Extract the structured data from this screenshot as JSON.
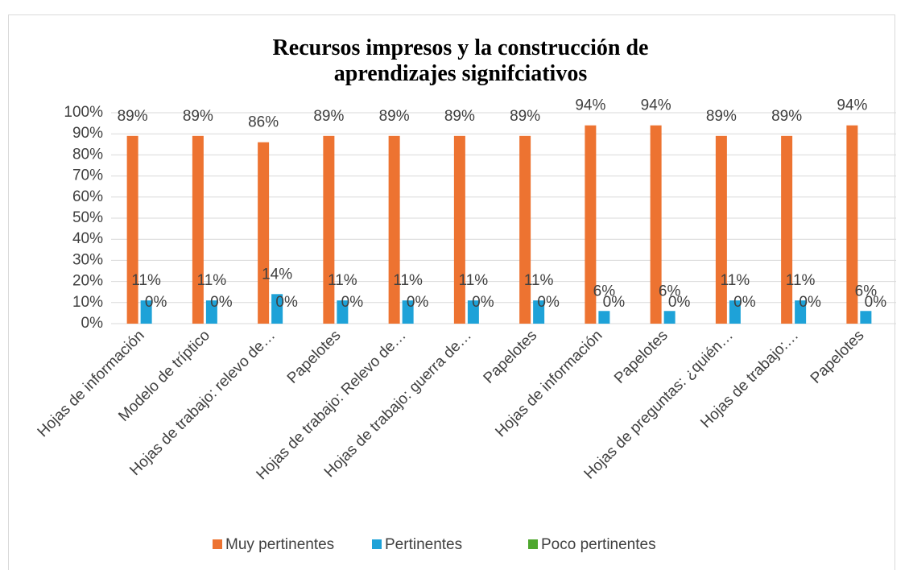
{
  "chart_data": {
    "type": "bar",
    "title": "Recursos impresos y la construcción de aprendizajes signifciativos",
    "categories": [
      "Hojas de información",
      "Modelo de tríptico",
      "Hojas de trabajo: relevo de…",
      "Papelotes",
      "Hojas de trabajo: Relevo de…",
      "Hojas de trabajo: guerra de…",
      "Papelotes",
      "Hojas de información",
      "Papelotes",
      "Hojas de preguntas: ¿quién…",
      "Hojas de trabajo:…",
      "Papelotes"
    ],
    "series": [
      {
        "name": "Muy pertinentes",
        "color": "#ed7331",
        "values": [
          89,
          89,
          86,
          89,
          89,
          89,
          89,
          94,
          94,
          89,
          89,
          94
        ],
        "value_labels": [
          "89%",
          "89%",
          "86%",
          "89%",
          "89%",
          "89%",
          "89%",
          "94%",
          "94%",
          "89%",
          "89%",
          "94%"
        ]
      },
      {
        "name": "Pertinentes",
        "color": "#1ea2d8",
        "values": [
          11,
          11,
          14,
          11,
          11,
          11,
          11,
          6,
          6,
          11,
          11,
          6
        ],
        "value_labels": [
          "11%",
          "11%",
          "14%",
          "11%",
          "11%",
          "11%",
          "11%",
          "6%",
          "6%",
          "11%",
          "11%",
          "6%"
        ]
      },
      {
        "name": "Poco pertinentes",
        "color": "#4ea72e",
        "values": [
          0,
          0,
          0,
          0,
          0,
          0,
          0,
          0,
          0,
          0,
          0,
          0
        ],
        "value_labels": [
          "0%",
          "0%",
          "0%",
          "0%",
          "0%",
          "0%",
          "0%",
          "0%",
          "0%",
          "0%",
          "0%",
          "0%"
        ]
      }
    ],
    "ylim": [
      0,
      100
    ],
    "yticks": [
      {
        "value": 0,
        "label": "0%"
      },
      {
        "value": 10,
        "label": "10%"
      },
      {
        "value": 20,
        "label": "20%"
      },
      {
        "value": 30,
        "label": "30%"
      },
      {
        "value": 40,
        "label": "40%"
      },
      {
        "value": 50,
        "label": "50%"
      },
      {
        "value": 60,
        "label": "60%"
      },
      {
        "value": 70,
        "label": "70%"
      },
      {
        "value": 80,
        "label": "80%"
      },
      {
        "value": 90,
        "label": "90%"
      },
      {
        "value": 100,
        "label": "100%"
      }
    ],
    "grid": true,
    "legend": "bottom"
  }
}
